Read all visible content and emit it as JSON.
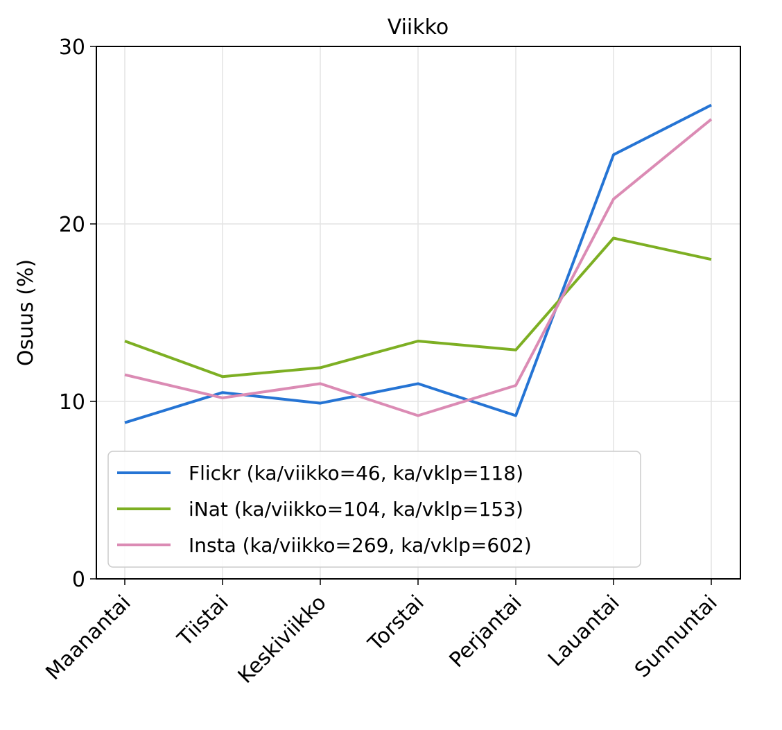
{
  "chart_data": {
    "type": "line",
    "title": "Viikko",
    "xlabel": "",
    "ylabel": "Osuus (%)",
    "categories": [
      "Maanantai",
      "Tiistai",
      "Keskiviikko",
      "Torstai",
      "Perjantai",
      "Lauantai",
      "Sunnuntai"
    ],
    "ylim": [
      0,
      30
    ],
    "yticks": [
      "0",
      "10",
      "20",
      "30"
    ],
    "grid": true,
    "legend_position": "lower-left",
    "series": [
      {
        "name": "Flickr (ka/viikko=46, ka/vklp=118)",
        "color": "#2574d4",
        "values": [
          8.8,
          10.5,
          9.9,
          11.0,
          9.2,
          23.9,
          26.7
        ]
      },
      {
        "name": "iNat (ka/viikko=104, ka/vklp=153)",
        "color": "#7daf23",
        "values": [
          13.4,
          11.4,
          11.9,
          13.4,
          12.9,
          19.2,
          18.0
        ]
      },
      {
        "name": "Insta (ka/viikko=269, ka/vklp=602)",
        "color": "#db8bb4",
        "values": [
          11.5,
          10.2,
          11.0,
          9.2,
          10.9,
          21.4,
          25.9
        ]
      }
    ]
  }
}
